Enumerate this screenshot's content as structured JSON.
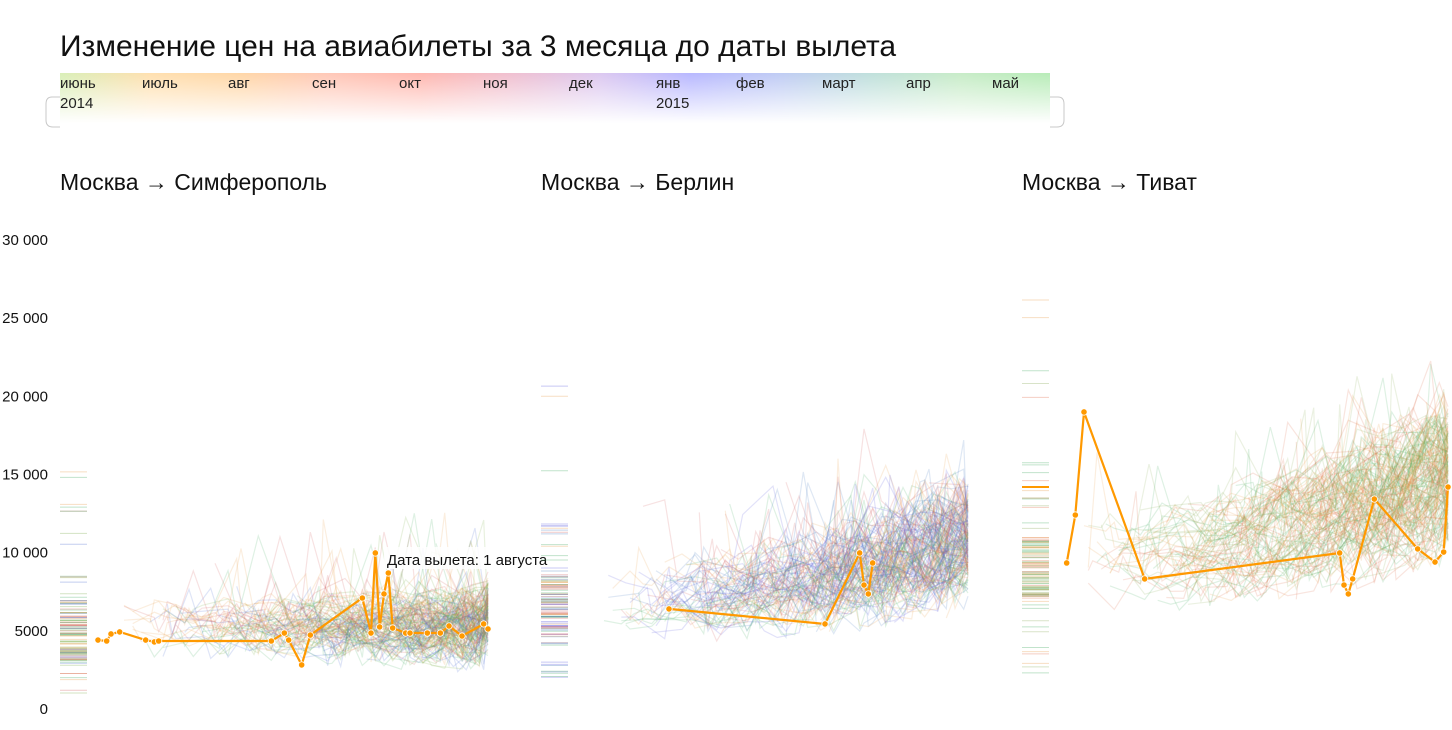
{
  "chart_data": {
    "type": "line",
    "title": "Изменение цен на авиабилеты за 3 месяца до даты вылета",
    "timeline": {
      "months": [
        "июнь",
        "июль",
        "авг",
        "сен",
        "окт",
        "ноя",
        "дек",
        "янв",
        "фев",
        "март",
        "апр",
        "май"
      ],
      "years": [
        {
          "label": "2014",
          "month_index": 0
        },
        {
          "label": "2015",
          "month_index": 7
        }
      ],
      "month_colors": [
        "#d9efb8",
        "#ffe0b0",
        "#ffd7a8",
        "#ffc8b8",
        "#ffb8b0",
        "#f0c0d0",
        "#dcc8f0",
        "#b8b8ff",
        "#c0ccf4",
        "#c0e0dc",
        "#c8ecc8",
        "#b8ecb8"
      ]
    },
    "xlabel": "",
    "x_unit": "days before departure",
    "xlim": [
      90,
      0
    ],
    "ylabel": "",
    "ylim": [
      0,
      30000
    ],
    "yticks": [
      "0",
      "5000",
      "10 000",
      "15 000",
      "20 000",
      "25 000",
      "30 000"
    ],
    "ytick_values": [
      0,
      5000,
      10000,
      15000,
      20000,
      25000,
      30000
    ],
    "highlight_color": "#ff9900",
    "panels": [
      {
        "title": "Москва → Симферополь",
        "tooltip": "Дата вылета: 1 августа",
        "highlight": {
          "days": [
            90,
            88,
            87,
            85,
            79,
            77,
            76,
            50,
            47,
            46,
            43,
            41,
            29,
            27,
            26,
            25,
            24,
            23,
            22,
            19,
            18,
            14,
            11,
            9,
            6,
            1,
            0
          ],
          "prices": [
            4410,
            4350,
            4800,
            4930,
            4410,
            4290,
            4350,
            4350,
            4860,
            4410,
            2820,
            4730,
            7100,
            4860,
            9980,
            5250,
            7360,
            8700,
            5180,
            4860,
            4860,
            4860,
            4860,
            5310,
            4670,
            5440,
            5120
          ]
        },
        "background_palette": [
          "#4caf6a",
          "#e8a050",
          "#5070d0",
          "#d06060",
          "#80b050"
        ],
        "background_center": 5000
      },
      {
        "title": "Москва → Берлин",
        "tooltip": "",
        "highlight": {
          "days": [
            69,
            33,
            25,
            24,
            23,
            22
          ],
          "prices": [
            6400,
            5440,
            9980,
            7930,
            7360,
            9340
          ]
        },
        "background_palette": [
          "#6060e0",
          "#4caf6a",
          "#e8a050",
          "#5080c0",
          "#d06060"
        ],
        "background_center": 6500
      },
      {
        "title": "Москва → Тиват",
        "tooltip": "",
        "highlight": {
          "days": [
            88,
            86,
            84,
            70,
            25,
            24,
            23,
            22,
            17,
            7,
            3,
            1,
            0
          ],
          "prices": [
            9340,
            12410,
            19000,
            8320,
            9980,
            7930,
            7360,
            8320,
            13430,
            10240,
            9400,
            10040,
            14200
          ]
        },
        "background_palette": [
          "#4caf6a",
          "#e8a050",
          "#e07050",
          "#90b060"
        ],
        "background_center": 9000
      }
    ]
  }
}
